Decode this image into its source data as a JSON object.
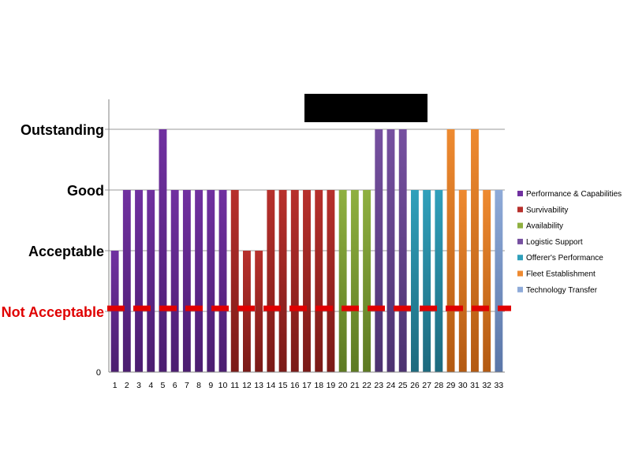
{
  "chart_data": {
    "type": "bar",
    "title": "",
    "xlabel": "",
    "ylabel": "",
    "y_tick_zero": "0",
    "y_levels": [
      {
        "label": "Outstanding",
        "value": 4
      },
      {
        "label": "Good",
        "value": 3
      },
      {
        "label": "Acceptable",
        "value": 2
      },
      {
        "label": "Not Acceptable",
        "value": 1
      }
    ],
    "ylim": [
      0,
      4.5
    ],
    "threshold": {
      "label": "Not Acceptable",
      "value": 1.05,
      "color": "#e00000"
    },
    "categories": [
      "1",
      "2",
      "3",
      "4",
      "5",
      "6",
      "7",
      "8",
      "9",
      "10",
      "11",
      "12",
      "13",
      "14",
      "15",
      "16",
      "17",
      "18",
      "19",
      "20",
      "21",
      "22",
      "23",
      "24",
      "25",
      "26",
      "27",
      "28",
      "29",
      "30",
      "31",
      "32",
      "33"
    ],
    "values": [
      2,
      3,
      3,
      3,
      4,
      3,
      3,
      3,
      3,
      3,
      3,
      2,
      2,
      3,
      3,
      3,
      3,
      3,
      3,
      3,
      3,
      3,
      4,
      4,
      4,
      3,
      3,
      3,
      4,
      3,
      4,
      3,
      3
    ],
    "series_index": [
      0,
      0,
      0,
      0,
      0,
      0,
      0,
      0,
      0,
      0,
      1,
      1,
      1,
      1,
      1,
      1,
      1,
      1,
      1,
      2,
      2,
      2,
      3,
      3,
      3,
      4,
      4,
      4,
      5,
      5,
      5,
      5,
      6
    ],
    "series": [
      {
        "name": "Performance & Capabilities",
        "color": "#7030a0",
        "color_dark": "#4b1d70"
      },
      {
        "name": "Survivability",
        "color": "#b7302c",
        "color_dark": "#7a1a17"
      },
      {
        "name": "Availability",
        "color": "#8fb040",
        "color_dark": "#5d7a22"
      },
      {
        "name": "Logistic Support",
        "color": "#7650a0",
        "color_dark": "#4c3270"
      },
      {
        "name": "Offerer's Performance",
        "color": "#30a0bb",
        "color_dark": "#1d6a7e"
      },
      {
        "name": "Fleet Establishment",
        "color": "#ee8a30",
        "color_dark": "#b35a12"
      },
      {
        "name": "Technology Transfer",
        "color": "#8eaad8",
        "color_dark": "#5a76a8"
      }
    ],
    "grid": true,
    "legend": "right"
  }
}
